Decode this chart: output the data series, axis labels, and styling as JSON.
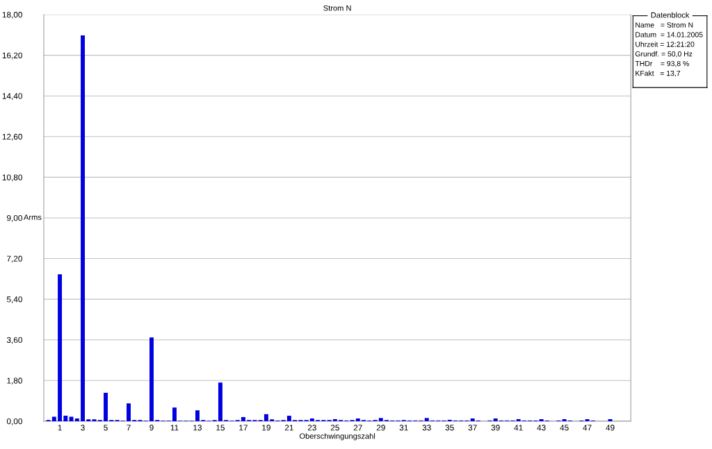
{
  "chart_data": {
    "type": "bar",
    "title": "Strom N",
    "xlabel": "Oberschwingungszahl",
    "ylabel": "Arms",
    "x": [
      0,
      0.5,
      1,
      1.5,
      2,
      2.5,
      3,
      3.5,
      4,
      4.5,
      5,
      5.5,
      6,
      6.5,
      7,
      7.5,
      8,
      8.5,
      9,
      9.5,
      10,
      10.5,
      11,
      11.5,
      12,
      12.5,
      13,
      13.5,
      14,
      14.5,
      15,
      15.5,
      16,
      16.5,
      17,
      17.5,
      18,
      18.5,
      19,
      19.5,
      20,
      20.5,
      21,
      21.5,
      22,
      22.5,
      23,
      23.5,
      24,
      24.5,
      25,
      25.5,
      26,
      26.5,
      27,
      27.5,
      28,
      28.5,
      29,
      29.5,
      30,
      30.5,
      31,
      31.5,
      32,
      32.5,
      33,
      33.5,
      34,
      34.5,
      35,
      35.5,
      36,
      36.5,
      37,
      37.5,
      38,
      38.5,
      39,
      39.5,
      40,
      40.5,
      41,
      41.5,
      42,
      42.5,
      43,
      43.5,
      44,
      44.5,
      45,
      45.5,
      46,
      46.5,
      47,
      47.5,
      48,
      48.5,
      49
    ],
    "values": [
      0.05,
      0.2,
      6.5,
      0.24,
      0.2,
      0.12,
      17.08,
      0.08,
      0.08,
      0.05,
      1.26,
      0.05,
      0.05,
      0.02,
      0.79,
      0.05,
      0.05,
      0.02,
      3.71,
      0.05,
      0.02,
      0.02,
      0.6,
      0.02,
      0.02,
      0.02,
      0.48,
      0.05,
      0.02,
      0.05,
      1.71,
      0.05,
      0.02,
      0.05,
      0.18,
      0.05,
      0.05,
      0.05,
      0.31,
      0.08,
      0.03,
      0.05,
      0.24,
      0.05,
      0.05,
      0.05,
      0.12,
      0.05,
      0.05,
      0.05,
      0.09,
      0.05,
      0.03,
      0.05,
      0.12,
      0.05,
      0.03,
      0.05,
      0.14,
      0.05,
      0.03,
      0.03,
      0.05,
      0.03,
      0.03,
      0.03,
      0.14,
      0.03,
      0.03,
      0.03,
      0.06,
      0.03,
      0.03,
      0.03,
      0.12,
      0.03,
      0,
      0.03,
      0.12,
      0.03,
      0.03,
      0.03,
      0.09,
      0.03,
      0.03,
      0.03,
      0.09,
      0.03,
      0,
      0.03,
      0.09,
      0.03,
      0,
      0.03,
      0.09,
      0.03,
      0,
      0,
      0.09
    ],
    "color": "#0000e0",
    "xlim": [
      -0.4,
      50.8
    ],
    "xticks": [
      1,
      3,
      5,
      7,
      9,
      11,
      13,
      15,
      17,
      19,
      21,
      23,
      25,
      27,
      29,
      31,
      33,
      35,
      37,
      39,
      41,
      43,
      45,
      47,
      49
    ],
    "ylim": [
      0,
      18
    ],
    "yticks": [
      {
        "value": 0,
        "label": "0,00"
      },
      {
        "value": 1.8,
        "label": "1,80"
      },
      {
        "value": 3.6,
        "label": "3,60"
      },
      {
        "value": 5.4,
        "label": "5,40"
      },
      {
        "value": 7.2,
        "label": "7,20"
      },
      {
        "value": 9,
        "label": "9,00"
      },
      {
        "value": 10.8,
        "label": "10,80"
      },
      {
        "value": 12.6,
        "label": "12,60"
      },
      {
        "value": 14.4,
        "label": "14,40"
      },
      {
        "value": 16.2,
        "label": "16,20"
      },
      {
        "value": 18,
        "label": "18,00"
      }
    ],
    "grid": "y",
    "legend_title": "Datenblock",
    "annotations": [
      "Name   = Strom N",
      "Datum  = 14.01.2005",
      "Uhrzeit = 12:21:20",
      "Grundf. = 50,0 Hz",
      "THDr    = 93,8 %",
      "KFakt   = 13,7"
    ]
  }
}
